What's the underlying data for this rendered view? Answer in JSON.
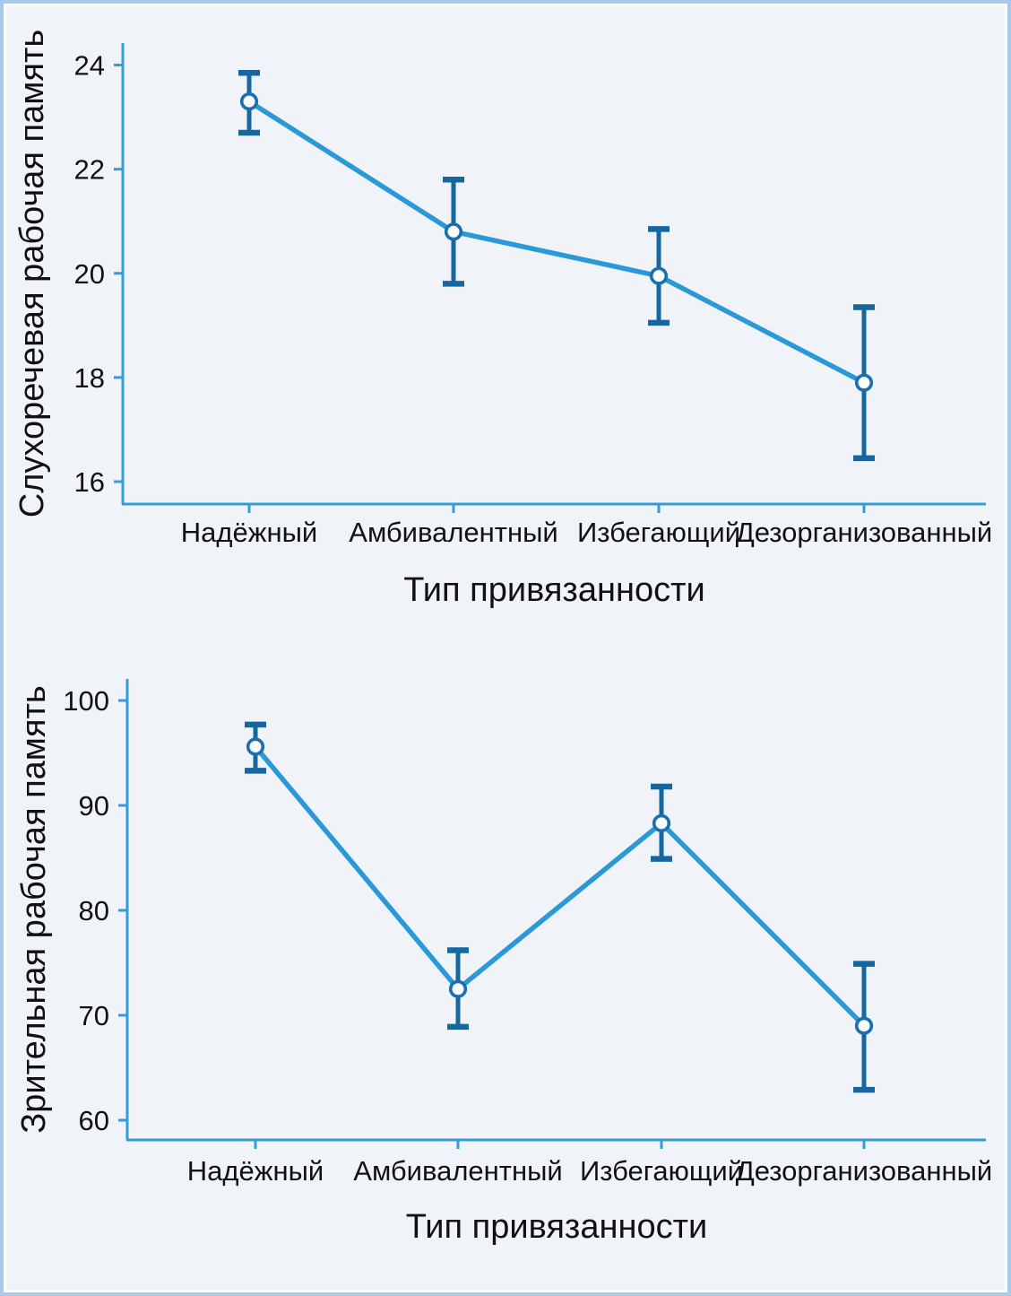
{
  "figure": {
    "background": "#f0f4f9",
    "border_color": "#a9c8ec",
    "inner_border_color": "#fbfdff"
  },
  "colors": {
    "axis": "#359bd6",
    "line": "#2b99d8",
    "error_bar": "#16679f",
    "marker_fill": "#fcfdff",
    "marker_stroke": "#1a6fae",
    "text": "#111111"
  },
  "chart_data": [
    {
      "type": "line",
      "title": "",
      "categories": [
        "Надёжный",
        "Амбивалентный",
        "Избегающий",
        "Дезорганизованный"
      ],
      "xlabel": "Тип привязанности",
      "ylabel": "Слухоречевая рабочая память",
      "yticks": [
        16,
        18,
        20,
        22,
        24
      ],
      "ylim": [
        15.4,
        24.6
      ],
      "grid": false,
      "legend": false,
      "marker": "open-circle",
      "error_bars": true,
      "series": [
        {
          "name": "Слухоречевая рабочая память",
          "values": [
            23.3,
            20.8,
            19.95,
            17.9
          ],
          "error_low": [
            22.7,
            19.8,
            19.05,
            16.45
          ],
          "error_high": [
            23.85,
            21.8,
            20.85,
            19.35
          ]
        }
      ]
    },
    {
      "type": "line",
      "title": "",
      "categories": [
        "Надёжный",
        "Амбивалентный",
        "Избегающий",
        "Дезорганизованный"
      ],
      "xlabel": "Тип привязанности",
      "ylabel": "Зрительная рабочая память",
      "yticks": [
        60,
        70,
        80,
        90,
        100
      ],
      "ylim": [
        58.4,
        102.6
      ],
      "grid": false,
      "legend": false,
      "marker": "open-circle",
      "error_bars": true,
      "series": [
        {
          "name": "Зрительная рабочая память",
          "values": [
            95.6,
            72.5,
            88.3,
            69.0
          ],
          "error_low": [
            93.3,
            68.9,
            84.9,
            62.9
          ],
          "error_high": [
            97.7,
            76.2,
            91.8,
            74.9
          ]
        }
      ]
    }
  ]
}
